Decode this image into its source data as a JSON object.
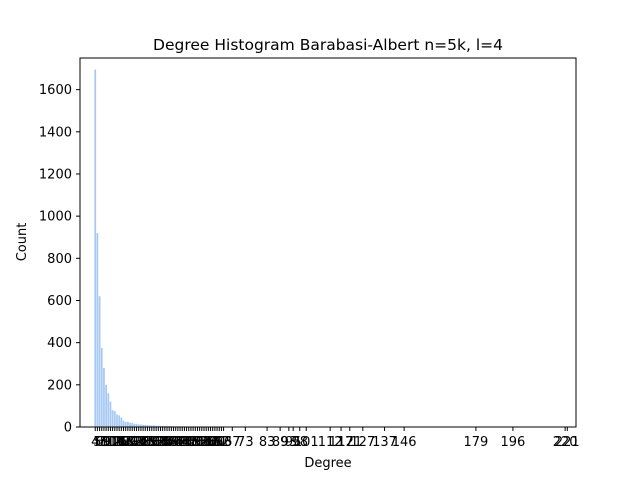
{
  "chart_data": {
    "type": "bar",
    "title": "Degree Histogram Barabasi-Albert n=5k, l=4",
    "xlabel": "Degree",
    "ylabel": "Count",
    "ylim": [
      0,
      1750
    ],
    "xlim": [
      -3,
      225
    ],
    "grid": false,
    "bar_color": "#a6c8f5",
    "y_ticks": [
      0,
      200,
      400,
      600,
      800,
      1000,
      1200,
      1400,
      1600
    ],
    "x_tick_labels": [
      "4",
      "5",
      "6",
      "7",
      "8",
      "9",
      "10",
      "11",
      "12",
      "13",
      "14",
      "15",
      "16",
      "17",
      "18",
      "19",
      "20",
      "21",
      "22",
      "23",
      "24",
      "25",
      "26",
      "27",
      "28",
      "29",
      "30",
      "31",
      "32",
      "33",
      "34",
      "35",
      "36",
      "37",
      "38",
      "39",
      "40",
      "41",
      "42",
      "43",
      "44",
      "45",
      "46",
      "47",
      "48",
      "49",
      "50",
      "51",
      "52",
      "53",
      "54",
      "55",
      "56",
      "57",
      "58",
      "59",
      "60",
      "61",
      "62",
      "63",
      "67",
      "73",
      "83",
      "89",
      "93",
      "95",
      "98",
      "101",
      "112",
      "117",
      "121",
      "127",
      "137",
      "146",
      "179",
      "196",
      "220",
      "221"
    ],
    "x": [
      4,
      5,
      6,
      7,
      8,
      9,
      10,
      11,
      12,
      13,
      14,
      15,
      16,
      17,
      18,
      19,
      20,
      21,
      22,
      23,
      24,
      25,
      26,
      27,
      28,
      29,
      30,
      31,
      32,
      33,
      34,
      35,
      36,
      37,
      38,
      39,
      40,
      41,
      42,
      43,
      44,
      45,
      46,
      47,
      48,
      49,
      50,
      51,
      52,
      53,
      54,
      55,
      56,
      57,
      58,
      59,
      60,
      61,
      62,
      63,
      67,
      73,
      83,
      89,
      93,
      95,
      98,
      101,
      112,
      117,
      121,
      127,
      137,
      146,
      179,
      196,
      220,
      221
    ],
    "values": [
      1695,
      920,
      620,
      375,
      280,
      200,
      160,
      120,
      80,
      75,
      60,
      55,
      45,
      30,
      25,
      25,
      20,
      20,
      15,
      15,
      12,
      12,
      10,
      10,
      9,
      8,
      7,
      7,
      6,
      6,
      5,
      5,
      5,
      4,
      4,
      4,
      3,
      3,
      3,
      3,
      3,
      2,
      2,
      2,
      2,
      2,
      2,
      2,
      2,
      2,
      2,
      2,
      1,
      1,
      1,
      1,
      1,
      1,
      1,
      1,
      1,
      1,
      1,
      1,
      1,
      1,
      1,
      1,
      1,
      1,
      1,
      1,
      1,
      1,
      1,
      1,
      1,
      1
    ]
  }
}
